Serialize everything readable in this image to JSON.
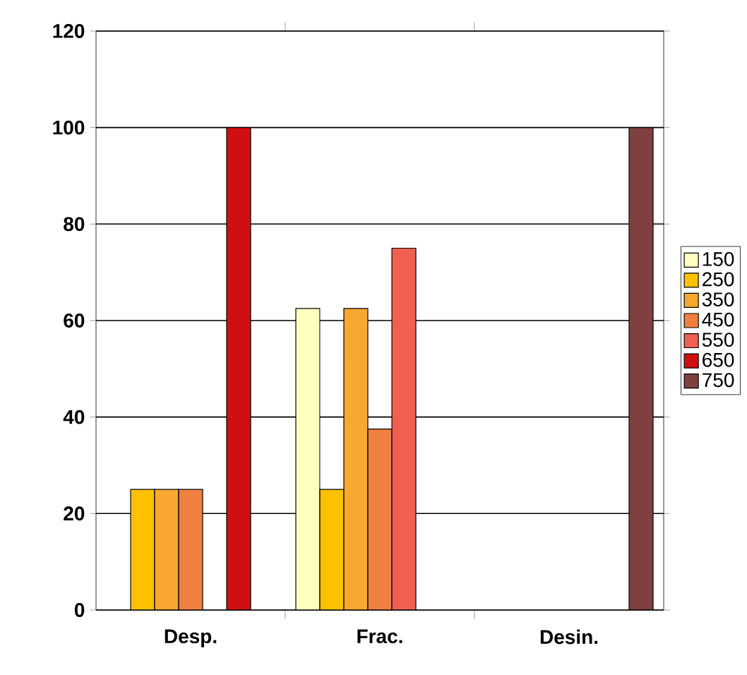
{
  "chart_data": {
    "type": "bar",
    "categories": [
      "Desp.",
      "Frac.",
      "Desin."
    ],
    "series": [
      {
        "name": "150",
        "color": "#ffffc0",
        "values": [
          null,
          62.5,
          null
        ]
      },
      {
        "name": "250",
        "color": "#ffc000",
        "values": [
          25,
          25,
          null
        ]
      },
      {
        "name": "350",
        "color": "#f8a830",
        "values": [
          25,
          62.5,
          null
        ]
      },
      {
        "name": "450",
        "color": "#f08040",
        "values": [
          25,
          37.5,
          null
        ]
      },
      {
        "name": "550",
        "color": "#f06050",
        "values": [
          null,
          75,
          null
        ]
      },
      {
        "name": "650",
        "color": "#d01010",
        "values": [
          100,
          null,
          null
        ]
      },
      {
        "name": "750",
        "color": "#804040",
        "values": [
          null,
          null,
          100
        ]
      }
    ],
    "ylim": [
      0,
      120
    ],
    "yticks": [
      0,
      20,
      40,
      60,
      80,
      100,
      120
    ],
    "grid": "y",
    "legend": "right"
  }
}
